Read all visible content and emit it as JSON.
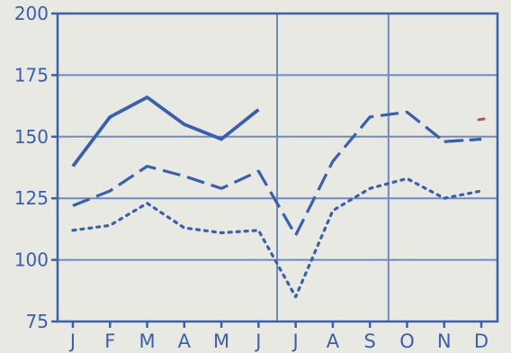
{
  "chart_data": {
    "type": "line",
    "categories": [
      "J",
      "F",
      "M",
      "A",
      "M",
      "J",
      "J",
      "A",
      "S",
      "O",
      "N",
      "D"
    ],
    "ylim": [
      75,
      200
    ],
    "yticks": [
      75,
      100,
      125,
      150,
      175,
      200
    ],
    "grid": {
      "horizontal": true,
      "vertical_after_index": [
        5,
        8
      ]
    },
    "legend": "none",
    "series": [
      {
        "style": "solid",
        "values": [
          138,
          158,
          166,
          155,
          149,
          161,
          null,
          null,
          null,
          null,
          null,
          null
        ]
      },
      {
        "style": "dashed",
        "values": [
          null,
          null,
          null,
          null,
          null,
          null,
          null,
          null,
          null,
          null,
          148,
          149
        ]
      },
      {
        "style": "dashed",
        "values": [
          122,
          128,
          138,
          134,
          129,
          136,
          110,
          140,
          158,
          160,
          148,
          149
        ]
      },
      {
        "style": "dotted",
        "values": [
          112,
          114,
          123,
          113,
          111,
          112,
          85,
          120,
          129,
          133,
          125,
          128
        ]
      }
    ],
    "title": "",
    "xlabel": "",
    "ylabel": ""
  },
  "colors": {
    "background": "#e8e9e3",
    "ink": "#3a5fae",
    "grid": "#6f89c3",
    "marker": "#c0504d"
  }
}
